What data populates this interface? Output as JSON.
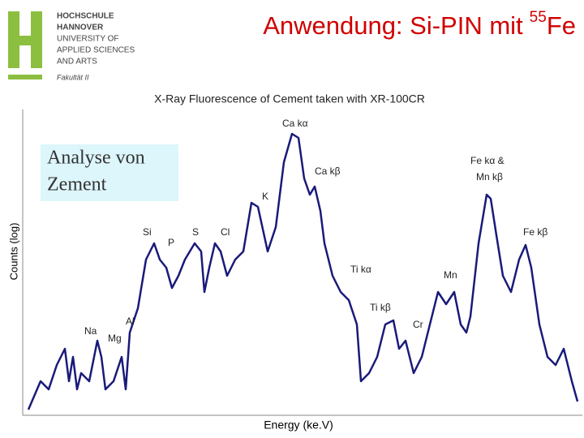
{
  "logo": {
    "lines": [
      "HOCHSCHULE",
      "HANNOVER",
      "UNIVERSITY OF",
      "APPLIED SCIENCES",
      "AND ARTS"
    ],
    "faculty": "Fakultät II"
  },
  "title": {
    "text": "Anwendung: Si-PIN mit",
    "superscript": "55",
    "suffix": "Fe"
  },
  "chart": {
    "title": "X-Ray Fluorescence of Cement taken with XR-100CR",
    "x_label": "Energy (ke.V)",
    "y_label": "Counts (log)",
    "box": [
      "Analyse von",
      "Zement"
    ],
    "annotations": [
      "Ca kα",
      "Ca kβ",
      "Fe kα &",
      "Mn kβ",
      "K",
      "Si",
      "P",
      "S",
      "Cl",
      "Fe kβ",
      "Ti kα",
      "Mn",
      "Ti kβ",
      "Cr",
      "Al",
      "Na",
      "Mg"
    ]
  }
}
